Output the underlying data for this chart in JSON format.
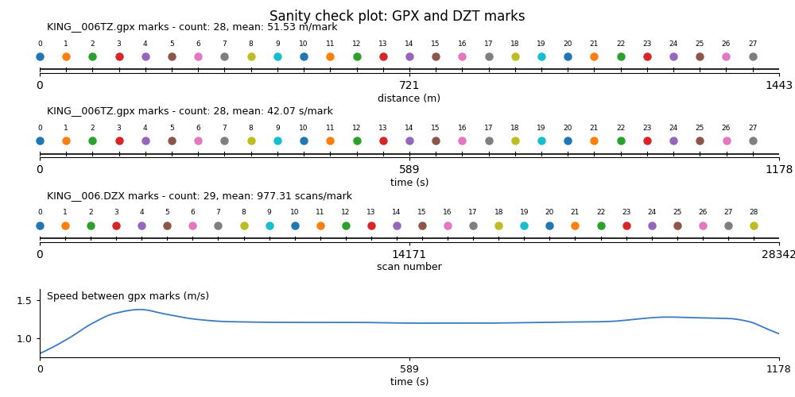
{
  "title": "Sanity check plot: GPX and DZT marks",
  "subplots": [
    {
      "label": "KING__006TZ.gpx marks - count: 28, mean: 51.53 m/mark",
      "xlabel": "distance (m)",
      "xmin": 0,
      "xmax": 1443,
      "xticks": [
        0,
        721,
        1443
      ],
      "mark_count": 28,
      "positions": [
        0,
        51.53,
        103.06,
        154.59,
        206.12,
        257.65,
        309.18,
        360.71,
        412.24,
        463.77,
        515.3,
        566.83,
        618.36,
        669.89,
        721.42,
        772.95,
        824.48,
        876.01,
        927.54,
        979.07,
        1030.6,
        1082.13,
        1133.66,
        1185.19,
        1236.72,
        1288.25,
        1339.78,
        1391.31
      ]
    },
    {
      "label": "KING__006TZ.gpx marks - count: 28, mean: 42.07 s/mark",
      "xlabel": "time (s)",
      "xmin": 0,
      "xmax": 1178,
      "xticks": [
        0,
        589,
        1178
      ],
      "mark_count": 28,
      "positions": [
        0,
        42.07,
        84.14,
        126.21,
        168.28,
        210.35,
        252.42,
        294.49,
        336.56,
        378.63,
        420.7,
        462.77,
        504.84,
        546.91,
        588.98,
        631.05,
        673.12,
        715.19,
        757.26,
        799.33,
        841.4,
        883.47,
        925.54,
        967.61,
        1009.68,
        1051.75,
        1093.82,
        1135.89
      ]
    },
    {
      "label": "KING__006.DZX marks - count: 29, mean: 977.31 scans/mark",
      "xlabel": "scan number",
      "xmin": 0,
      "xmax": 28342,
      "xticks": [
        0,
        14171,
        28342
      ],
      "mark_count": 29,
      "positions": [
        0,
        977.31,
        1954.62,
        2931.93,
        3909.24,
        4886.55,
        5863.86,
        6841.17,
        7818.48,
        8795.79,
        9773.1,
        10750.41,
        11727.72,
        12705.03,
        13682.34,
        14659.65,
        15636.96,
        16614.27,
        17591.58,
        18568.89,
        19546.2,
        20523.51,
        21500.82,
        22478.13,
        23455.44,
        24432.75,
        25410.06,
        26387.37,
        27364.68
      ]
    }
  ],
  "speed_subplot": {
    "xlabel": "time (s)",
    "ylabel": "Speed between gpx marks (m/s)",
    "xmin": 0,
    "xmax": 1178,
    "xticks": [
      0,
      589,
      1178
    ],
    "yticks": [
      1.0,
      1.5
    ],
    "ymin": 0.75,
    "ymax": 1.65
  },
  "colors": [
    "#1f77b4",
    "#ff7f0e",
    "#2ca02c",
    "#d62728",
    "#9467bd",
    "#8c564b",
    "#e377c2",
    "#7f7f7f",
    "#bcbd22",
    "#17becf",
    "#1f77b4",
    "#ff7f0e",
    "#2ca02c",
    "#d62728",
    "#9467bd",
    "#8c564b",
    "#e377c2",
    "#7f7f7f",
    "#bcbd22",
    "#17becf",
    "#1f77b4",
    "#ff7f0e",
    "#2ca02c",
    "#d62728",
    "#9467bd",
    "#8c564b",
    "#e377c2",
    "#7f7f7f",
    "#bcbd22"
  ],
  "line_color": "#3a7abf",
  "speed_t": [
    0,
    20,
    50,
    80,
    120,
    160,
    200,
    250,
    300,
    400,
    500,
    600,
    700,
    800,
    900,
    1000,
    1050,
    1100,
    1130,
    1160,
    1178
  ],
  "speed_v": [
    0.8,
    0.88,
    1.02,
    1.18,
    1.33,
    1.38,
    1.32,
    1.25,
    1.22,
    1.21,
    1.21,
    1.2,
    1.2,
    1.21,
    1.22,
    1.28,
    1.27,
    1.26,
    1.22,
    1.12,
    1.06
  ]
}
